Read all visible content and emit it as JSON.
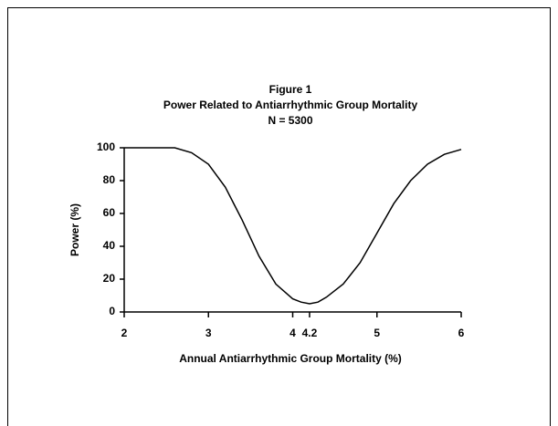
{
  "chart_data": {
    "type": "line",
    "title": "Figure 1",
    "subtitle": "Power Related to Antiarrhythmic Group Mortality",
    "annotation": "N = 5300",
    "x_label": "Annual Antiarrhythmic Group Mortality (%)",
    "y_label": "Power (%)",
    "x": [
      2.0,
      2.2,
      2.4,
      2.6,
      2.8,
      3.0,
      3.2,
      3.4,
      3.6,
      3.8,
      4.0,
      4.1,
      4.2,
      4.3,
      4.4,
      4.6,
      4.8,
      5.0,
      5.2,
      5.4,
      5.6,
      5.8,
      6.0
    ],
    "series": [
      {
        "name": "Power",
        "color": "#000000",
        "values": [
          100,
          100,
          100,
          100,
          97,
          90,
          76,
          56,
          34,
          17,
          8,
          6,
          5,
          6,
          9,
          17,
          30,
          48,
          66,
          80,
          90,
          96,
          99
        ]
      }
    ],
    "xlim": [
      2,
      6
    ],
    "xticks": [
      2,
      3,
      4,
      4.2,
      5,
      6
    ],
    "ylim": [
      0,
      100
    ],
    "yticks": [
      0,
      20,
      40,
      60,
      80,
      100
    ],
    "grid": false
  }
}
